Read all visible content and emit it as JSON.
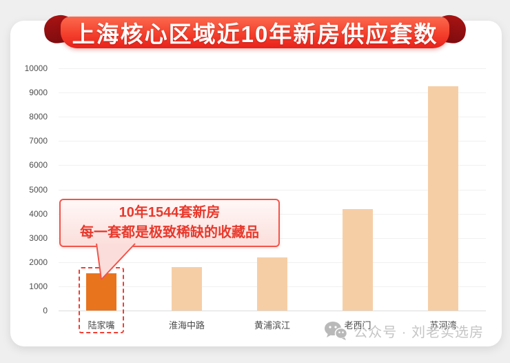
{
  "header": {
    "title": "上海核心区域近10年新房供应套数"
  },
  "chart_data": {
    "type": "bar",
    "title": "上海核心区域近10年新房供应套数",
    "categories": [
      "陆家嘴",
      "淮海中路",
      "黄浦滨江",
      "老西门",
      "苏河湾"
    ],
    "values": [
      1544,
      1800,
      2200,
      4200,
      9250
    ],
    "xlabel": "",
    "ylabel": "",
    "ylim": [
      0,
      10000
    ],
    "ytick_step": 1000,
    "grid": "horizontal",
    "legend": "none",
    "highlight_index": 0,
    "colors": {
      "bar": "#f6cea6",
      "highlight_bar": "#e8741e",
      "dashed_outline": "#f23c32"
    },
    "annotation": {
      "target": "陆家嘴",
      "line1": "10年1544套新房",
      "line2": "每一套都是极致稀缺的收藏品"
    }
  },
  "footer": {
    "icon": "wechat-icon",
    "text": "公众号 · 刘老实选房"
  }
}
